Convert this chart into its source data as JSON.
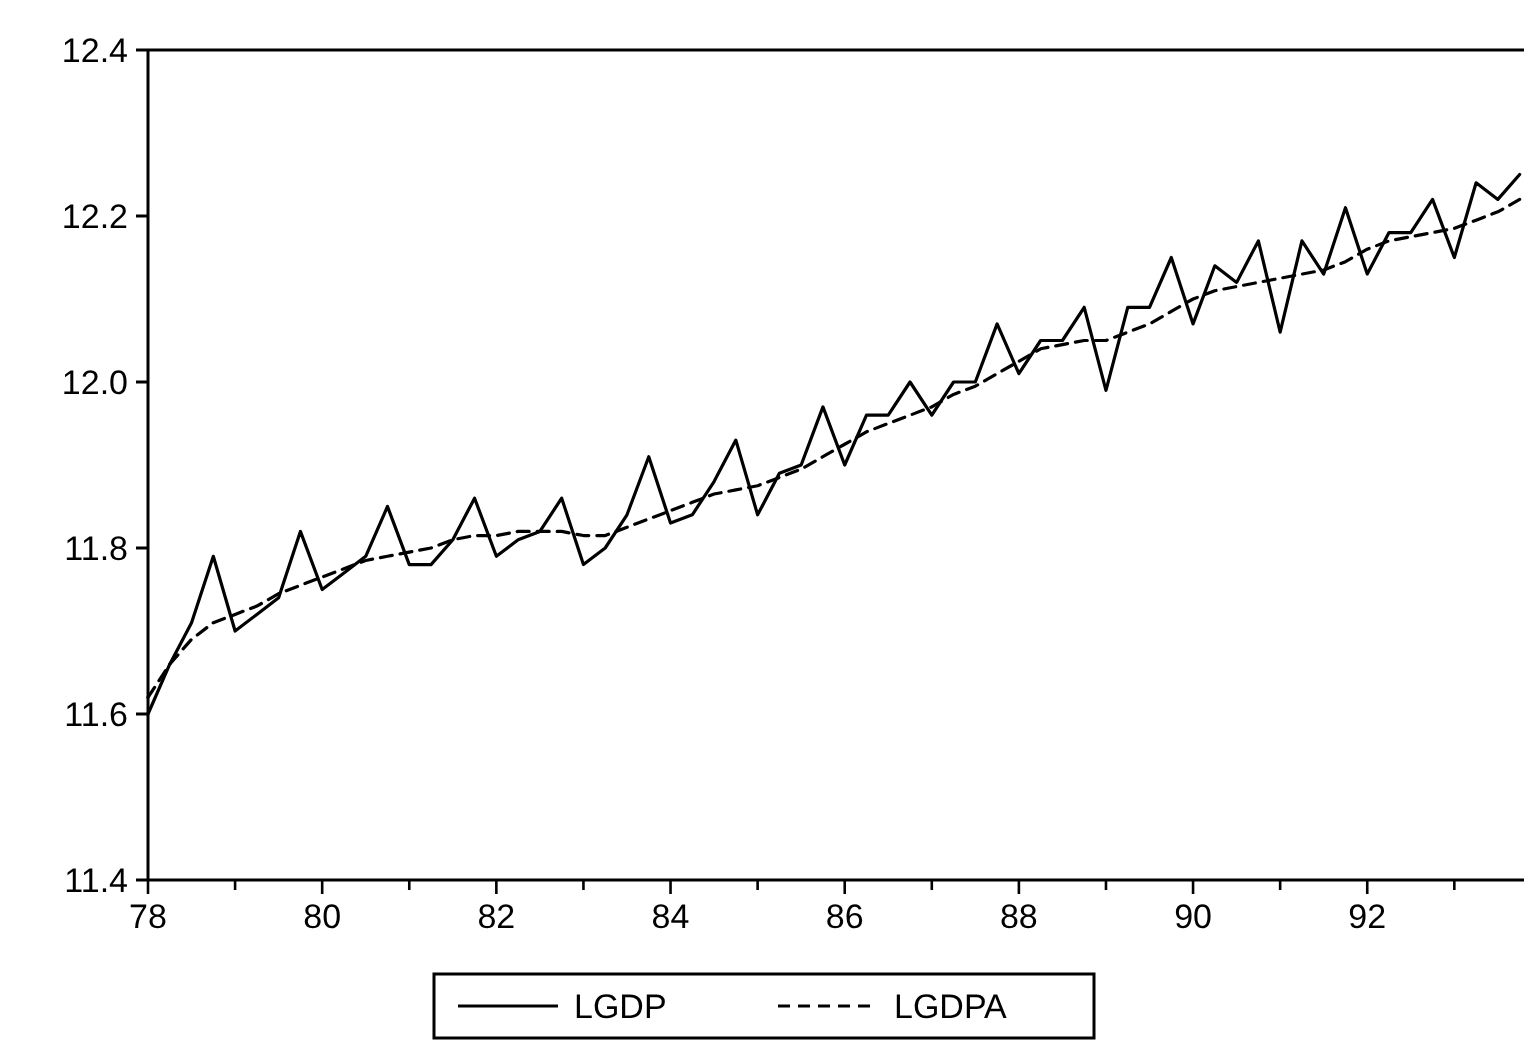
{
  "chart_data": {
    "type": "line",
    "x": [
      1978,
      1978.25,
      1978.5,
      1978.75,
      1979,
      1979.25,
      1979.5,
      1979.75,
      1980,
      1980.25,
      1980.5,
      1980.75,
      1981,
      1981.25,
      1981.5,
      1981.75,
      1982,
      1982.25,
      1982.5,
      1982.75,
      1983,
      1983.25,
      1983.5,
      1983.75,
      1984,
      1984.25,
      1984.5,
      1984.75,
      1985,
      1985.25,
      1985.5,
      1985.75,
      1986,
      1986.25,
      1986.5,
      1986.75,
      1987,
      1987.25,
      1987.5,
      1987.75,
      1988,
      1988.25,
      1988.5,
      1988.75,
      1989,
      1989.25,
      1989.5,
      1989.75,
      1990,
      1990.25,
      1990.5,
      1990.75,
      1991,
      1991.25,
      1991.5,
      1991.75,
      1992,
      1992.25,
      1992.5,
      1992.75,
      1993,
      1993.25,
      1993.5,
      1993.75
    ],
    "series": [
      {
        "name": "LGDP",
        "color": "#000000",
        "line_style": "solid",
        "values": [
          11.6,
          11.66,
          11.71,
          11.79,
          11.7,
          11.72,
          11.74,
          11.82,
          11.75,
          11.77,
          11.79,
          11.85,
          11.78,
          11.78,
          11.81,
          11.86,
          11.79,
          11.81,
          11.82,
          11.86,
          11.78,
          11.8,
          11.84,
          11.91,
          11.83,
          11.84,
          11.88,
          11.93,
          11.84,
          11.89,
          11.9,
          11.97,
          11.9,
          11.96,
          11.96,
          12.0,
          11.96,
          12.0,
          12.0,
          12.07,
          12.01,
          12.05,
          12.05,
          12.09,
          11.99,
          12.09,
          12.09,
          12.15,
          12.07,
          12.14,
          12.12,
          12.17,
          12.06,
          12.17,
          12.13,
          12.21,
          12.13,
          12.18,
          12.18,
          12.22,
          12.15,
          12.24,
          12.22,
          12.25
        ]
      },
      {
        "name": "LGDPA",
        "color": "#000000",
        "line_style": "dashed",
        "values": [
          11.62,
          11.66,
          11.69,
          11.71,
          11.72,
          11.73,
          11.745,
          11.755,
          11.765,
          11.775,
          11.785,
          11.79,
          11.795,
          11.8,
          11.81,
          11.815,
          11.815,
          11.82,
          11.82,
          11.82,
          11.815,
          11.815,
          11.825,
          11.835,
          11.845,
          11.855,
          11.865,
          11.87,
          11.875,
          11.885,
          11.895,
          11.91,
          11.925,
          11.94,
          11.95,
          11.96,
          11.97,
          11.985,
          11.995,
          12.01,
          12.025,
          12.04,
          12.045,
          12.05,
          12.05,
          12.06,
          12.07,
          12.085,
          12.1,
          12.11,
          12.115,
          12.12,
          12.125,
          12.13,
          12.135,
          12.145,
          12.16,
          12.17,
          12.175,
          12.18,
          12.185,
          12.195,
          12.205,
          12.22
        ]
      }
    ],
    "xlim": [
      1978,
      1993.8
    ],
    "xticks": [
      {
        "value": 1978,
        "label": "78"
      },
      {
        "value": 1979,
        "label": null
      },
      {
        "value": 1980,
        "label": "80"
      },
      {
        "value": 1981,
        "label": null
      },
      {
        "value": 1982,
        "label": "82"
      },
      {
        "value": 1983,
        "label": null
      },
      {
        "value": 1984,
        "label": "84"
      },
      {
        "value": 1985,
        "label": null
      },
      {
        "value": 1986,
        "label": "86"
      },
      {
        "value": 1987,
        "label": null
      },
      {
        "value": 1988,
        "label": "88"
      },
      {
        "value": 1989,
        "label": null
      },
      {
        "value": 1990,
        "label": "90"
      },
      {
        "value": 1991,
        "label": null
      },
      {
        "value": 1992,
        "label": "92"
      },
      {
        "value": 1993,
        "label": null
      }
    ],
    "ylim": [
      11.4,
      12.4
    ],
    "yticks": [
      {
        "value": 11.4,
        "label": "11.4"
      },
      {
        "value": 11.6,
        "label": "11.6"
      },
      {
        "value": 11.8,
        "label": "11.8"
      },
      {
        "value": 12,
        "label": "12.0"
      },
      {
        "value": 12.2,
        "label": "12.2"
      },
      {
        "value": 12.4,
        "label": "12.4"
      }
    ],
    "grid": false,
    "legend": "bottom",
    "marker": "none"
  }
}
